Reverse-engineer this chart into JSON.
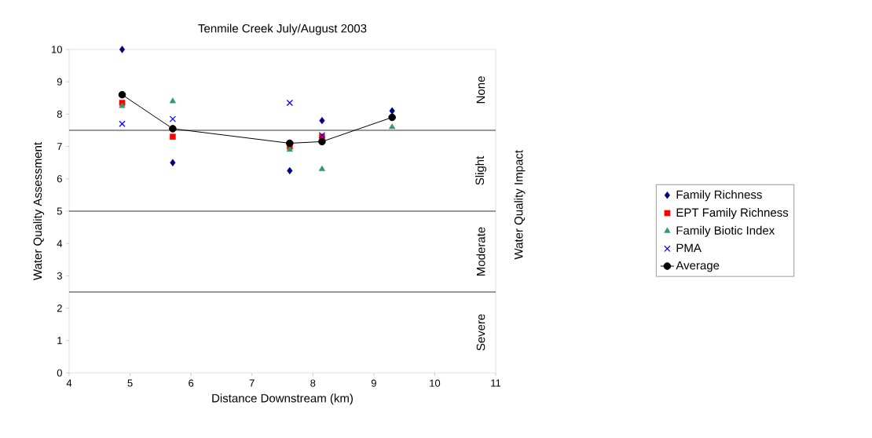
{
  "chart_data": {
    "type": "scatter",
    "title": "Tenmile Creek July/August 2003",
    "xlabel": "Distance Downstream (km)",
    "ylabel": "Water Quality Assessment",
    "y2label": "Water Quality Impact",
    "x": [
      4.87,
      5.7,
      7.62,
      8.15,
      9.3
    ],
    "series": [
      {
        "name": "Family Richness",
        "color": "#000080",
        "marker": "diamond",
        "values": [
          10.0,
          6.5,
          6.25,
          7.8,
          8.1
        ]
      },
      {
        "name": "EPT Family Richness",
        "color": "#ff0000",
        "marker": "square",
        "values": [
          8.35,
          7.3,
          7.0,
          7.3,
          null
        ]
      },
      {
        "name": "Family Biotic Index",
        "color": "#339966",
        "marker": "triangle",
        "values": [
          8.25,
          8.4,
          6.9,
          6.3,
          7.6
        ]
      },
      {
        "name": "PMA",
        "color": "#0000ff",
        "marker": "cross",
        "values": [
          7.7,
          7.85,
          8.35,
          7.35,
          null
        ]
      },
      {
        "name": "Average",
        "type": "line",
        "color": "#000000",
        "marker": "circle",
        "line_style": "solid",
        "values": [
          8.6,
          7.55,
          7.1,
          7.15,
          7.9
        ]
      }
    ],
    "ref_lines": [
      {
        "axis": "y",
        "value": 7.5
      },
      {
        "axis": "y",
        "value": 5
      },
      {
        "axis": "y",
        "value": 2.5
      }
    ],
    "annotations": [
      "None",
      "Slight",
      "Moderate",
      "Severe"
    ],
    "xlim": [
      4,
      11
    ],
    "xticks": [
      4,
      5,
      6,
      7,
      8,
      9,
      10,
      11
    ],
    "ylim": [
      0,
      10
    ],
    "yticks": [
      0,
      1,
      2,
      3,
      4,
      5,
      6,
      7,
      8,
      9,
      10
    ],
    "legend": "right"
  }
}
